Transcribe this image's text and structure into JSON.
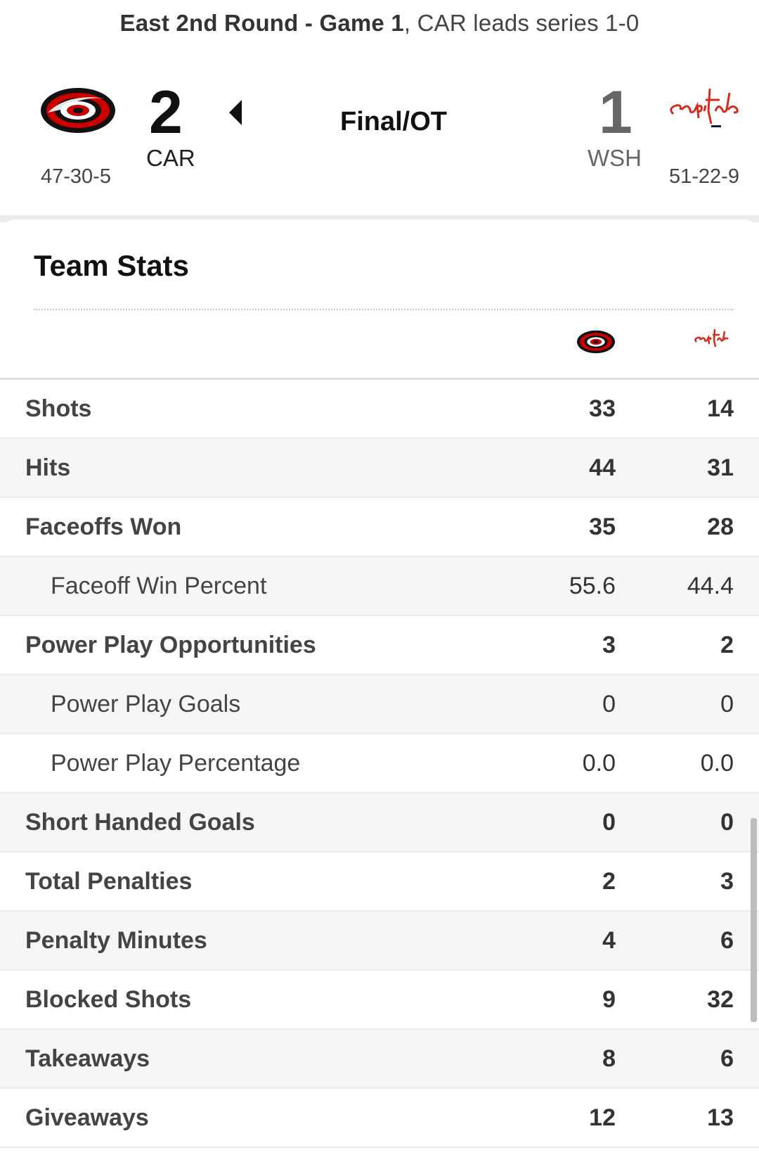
{
  "series": {
    "round": "East 2nd Round - Game 1",
    "status": "CAR leads series 1-0"
  },
  "game": {
    "status": "Final/OT"
  },
  "teams": {
    "home": {
      "abbr": "CAR",
      "score": "2",
      "record": "47-30-5",
      "logo": "hurricanes-logo-icon",
      "colors": {
        "red": "#cc0000",
        "black": "#111111"
      }
    },
    "away": {
      "abbr": "WSH",
      "score": "1",
      "record": "51-22-9",
      "logo": "capitals-logo-icon",
      "colors": {
        "red": "#d52b1e",
        "navy": "#041e42"
      }
    }
  },
  "card": {
    "title": "Team Stats"
  },
  "stats": [
    {
      "label": "Shots",
      "car": "33",
      "wsh": "14",
      "sub": false
    },
    {
      "label": "Hits",
      "car": "44",
      "wsh": "31",
      "sub": false
    },
    {
      "label": "Faceoffs Won",
      "car": "35",
      "wsh": "28",
      "sub": false
    },
    {
      "label": "Faceoff Win Percent",
      "car": "55.6",
      "wsh": "44.4",
      "sub": true
    },
    {
      "label": "Power Play Opportunities",
      "car": "3",
      "wsh": "2",
      "sub": false
    },
    {
      "label": "Power Play Goals",
      "car": "0",
      "wsh": "0",
      "sub": true
    },
    {
      "label": "Power Play Percentage",
      "car": "0.0",
      "wsh": "0.0",
      "sub": true
    },
    {
      "label": "Short Handed Goals",
      "car": "0",
      "wsh": "0",
      "sub": false
    },
    {
      "label": "Total Penalties",
      "car": "2",
      "wsh": "3",
      "sub": false
    },
    {
      "label": "Penalty Minutes",
      "car": "4",
      "wsh": "6",
      "sub": false
    },
    {
      "label": "Blocked Shots",
      "car": "9",
      "wsh": "32",
      "sub": false
    },
    {
      "label": "Takeaways",
      "car": "8",
      "wsh": "6",
      "sub": false
    },
    {
      "label": "Giveaways",
      "car": "12",
      "wsh": "13",
      "sub": false
    }
  ]
}
